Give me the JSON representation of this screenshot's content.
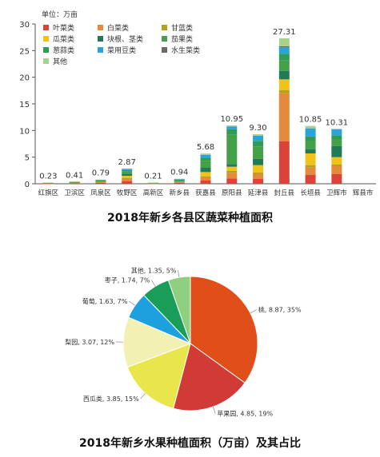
{
  "chart_data": [
    {
      "type": "bar",
      "stacked": true,
      "title": "2018年新乡各县区蔬菜种植面积",
      "unit_label": "单位：万亩",
      "categories": [
        "红旗区",
        "卫滨区",
        "凤泉区",
        "牧野区",
        "高新区",
        "新乡县",
        "获嘉县",
        "原阳县",
        "延津县",
        "封丘县",
        "长垣县",
        "卫辉市",
        "辉县市"
      ],
      "totals_labels": [
        "0.23",
        "0.41",
        "0.79",
        "2.87",
        "0.21",
        "0.94",
        "5.68",
        "10.95",
        "9.30",
        "27.31",
        "10.85",
        "10.31",
        ""
      ],
      "ylim": [
        0,
        30
      ],
      "yticks": [
        0,
        5,
        10,
        15,
        20,
        25,
        30
      ],
      "legend_position": "top-left",
      "series": [
        {
          "name": "叶菜类",
          "color": "#d9433a",
          "values": [
            0.03,
            0.1,
            0.2,
            0.5,
            0.03,
            0.2,
            0.6,
            1.0,
            0.9,
            8.0,
            1.7,
            1.8,
            0
          ]
        },
        {
          "name": "白菜类",
          "color": "#e58a3d",
          "values": [
            0.03,
            0.1,
            0.15,
            0.4,
            0.03,
            0.15,
            0.6,
            1.0,
            0.9,
            9.0,
            1.4,
            1.5,
            0
          ]
        },
        {
          "name": "甘蓝类",
          "color": "#b5a21b",
          "values": [
            0.02,
            0.03,
            0.05,
            0.2,
            0.02,
            0.05,
            0.2,
            0.4,
            0.3,
            0.6,
            0.4,
            0.3,
            0
          ]
        },
        {
          "name": "瓜菜类",
          "color": "#f2c21a",
          "values": [
            0.03,
            0.05,
            0.1,
            0.4,
            0.03,
            0.1,
            0.8,
            0.8,
            1.4,
            2.0,
            2.2,
            1.4,
            0
          ]
        },
        {
          "name": "块根、茎类",
          "color": "#1f7a55",
          "values": [
            0.02,
            0.03,
            0.05,
            0.3,
            0.02,
            0.05,
            0.8,
            0.5,
            1.2,
            1.6,
            0.8,
            2.1,
            0
          ]
        },
        {
          "name": "茄果类",
          "color": "#45a04a",
          "values": [
            0.05,
            0.05,
            0.1,
            0.5,
            0.04,
            0.2,
            1.3,
            5.55,
            2.3,
            2.0,
            1.6,
            1.3,
            0
          ]
        },
        {
          "name": "葱蒜类",
          "color": "#2e9b56",
          "values": [
            0.02,
            0.02,
            0.05,
            0.27,
            0.02,
            0.09,
            0.5,
            1.0,
            1.0,
            1.2,
            0.8,
            0.7,
            0
          ]
        },
        {
          "name": "菜用豆类",
          "color": "#29a3d9",
          "values": [
            0.02,
            0.02,
            0.05,
            0.2,
            0.01,
            0.05,
            0.6,
            0.5,
            1.0,
            1.2,
            1.5,
            1.2,
            0
          ]
        },
        {
          "name": "水生菜类",
          "color": "#6a6a6a",
          "values": [
            0,
            0,
            0,
            0.05,
            0,
            0,
            0,
            0,
            0,
            0.2,
            0,
            0,
            0
          ]
        },
        {
          "name": "其他",
          "color": "#a9d08e",
          "values": [
            0.01,
            0.01,
            0.04,
            0.05,
            0.01,
            0.05,
            0.28,
            0.2,
            0.3,
            1.51,
            0.45,
            0.01,
            0
          ]
        }
      ]
    },
    {
      "type": "pie",
      "title": "2018年新乡水果种植面积（万亩）及其占比",
      "slices": [
        {
          "name": "桃",
          "value": 8.87,
          "percent": "35%",
          "label": "桃, 8.87, 35%",
          "color": "#e04f1a"
        },
        {
          "name": "苹果园",
          "value": 4.85,
          "percent": "19%",
          "label": "苹果园, 4.85, 19%",
          "color": "#d23a36"
        },
        {
          "name": "西瓜类",
          "value": 3.85,
          "percent": "15%",
          "label": "西瓜类, 3.85, 15%",
          "color": "#e8e64a"
        },
        {
          "name": "梨园",
          "value": 3.07,
          "percent": "12%",
          "label": "梨园, 3.07, 12%",
          "color": "#f3f0b3"
        },
        {
          "name": "葡萄",
          "value": 1.63,
          "percent": "7%",
          "label": "葡萄, 1.63, 7%",
          "color": "#1ea0df"
        },
        {
          "name": "枣子",
          "value": 1.74,
          "percent": "7%",
          "label": "枣子, 1.74, 7%",
          "color": "#1a9e57"
        },
        {
          "name": "其他",
          "value": 1.35,
          "percent": "5%",
          "label": "其他, 1.35, 5%",
          "color": "#8ed07f"
        }
      ]
    }
  ]
}
